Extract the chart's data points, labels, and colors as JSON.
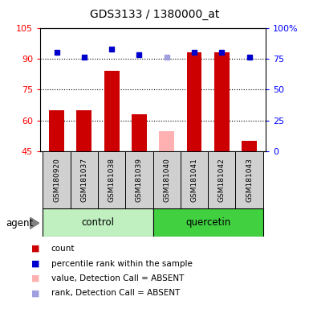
{
  "title": "GDS3133 / 1380000_at",
  "samples": [
    "GSM180920",
    "GSM181037",
    "GSM181038",
    "GSM181039",
    "GSM181040",
    "GSM181041",
    "GSM181042",
    "GSM181043"
  ],
  "bar_values": [
    65,
    65,
    84,
    63,
    null,
    93,
    93,
    50
  ],
  "absent_bar_values": [
    null,
    null,
    null,
    null,
    55,
    null,
    null,
    null
  ],
  "rank_values": [
    80,
    76,
    83,
    78,
    null,
    80,
    80,
    76
  ],
  "rank_absent_values": [
    null,
    null,
    null,
    null,
    76,
    null,
    null,
    null
  ],
  "ylim_left": [
    45,
    105
  ],
  "ylim_right": [
    0,
    100
  ],
  "yticks_left": [
    45,
    60,
    75,
    90,
    105
  ],
  "ytick_labels_left": [
    "45",
    "60",
    "75",
    "90",
    "105"
  ],
  "yticks_right_vals": [
    0,
    25,
    50,
    75,
    100
  ],
  "ytick_labels_right": [
    "0",
    "25",
    "50",
    "75",
    "100%"
  ],
  "group_light_color": "#c0f0c0",
  "group_dark_color": "#40d040",
  "legend_items": [
    {
      "label": "count",
      "color": "#cc0000"
    },
    {
      "label": "percentile rank within the sample",
      "color": "#0000cc"
    },
    {
      "label": "value, Detection Call = ABSENT",
      "color": "#ffb0b0"
    },
    {
      "label": "rank, Detection Call = ABSENT",
      "color": "#a0a0e0"
    }
  ],
  "bar_width": 0.55,
  "rank_marker_size": 5,
  "rank_color": "#0000cc",
  "absent_rank_color": "#a0a0e0",
  "bar_color": "#cc0000",
  "absent_bar_color": "#ffb0b0",
  "cell_bg": "#d0d0d0",
  "grid_color": "#000000",
  "dot_ticks": [
    60,
    75,
    90
  ]
}
